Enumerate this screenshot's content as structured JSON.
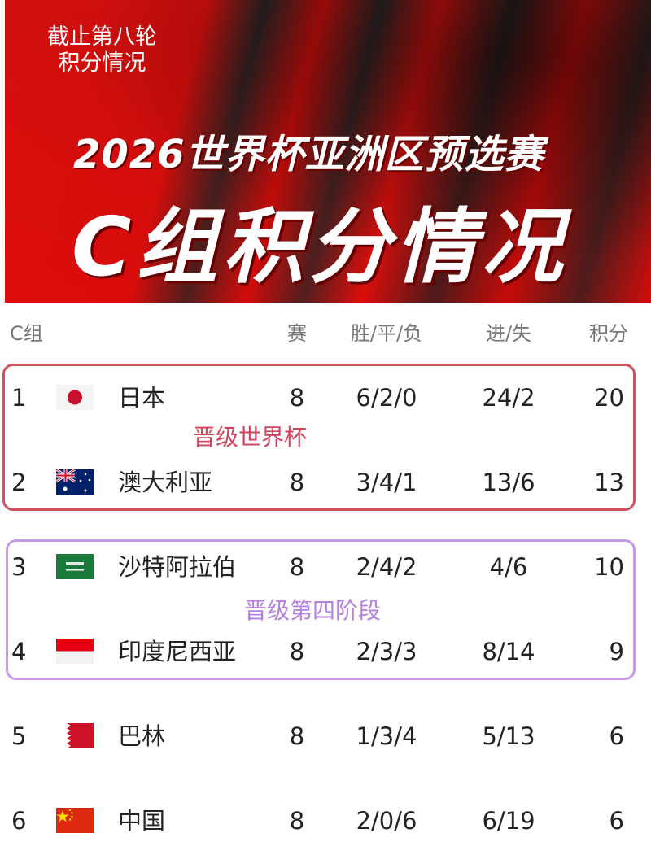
{
  "banner": {
    "subtitle_line1": "截止第八轮",
    "subtitle_line2": "积分情况",
    "title": "2026世界杯亚洲区预选赛",
    "heading": "C组积分情况"
  },
  "table": {
    "headers": {
      "group": "C组",
      "played": "赛",
      "wdl": "胜/平/负",
      "goals": "进/失",
      "points": "积分"
    },
    "zones": [
      {
        "label": "晋级世界杯",
        "color": "#d0445c"
      },
      {
        "label": "晋级第四阶段",
        "color": "#b580e0"
      }
    ],
    "rows": [
      {
        "rank": "1",
        "flag": "japan-flag",
        "team": "日本",
        "played": "8",
        "wdl": "6/2/0",
        "goals": "24/2",
        "points": "20"
      },
      {
        "rank": "2",
        "flag": "australia-flag",
        "team": "澳大利亚",
        "played": "8",
        "wdl": "3/4/1",
        "goals": "13/6",
        "points": "13"
      },
      {
        "rank": "3",
        "flag": "saudi-arabia-flag",
        "team": "沙特阿拉伯",
        "played": "8",
        "wdl": "2/4/2",
        "goals": "4/6",
        "points": "10"
      },
      {
        "rank": "4",
        "flag": "indonesia-flag",
        "team": "印度尼西亚",
        "played": "8",
        "wdl": "2/3/3",
        "goals": "8/14",
        "points": "9"
      },
      {
        "rank": "5",
        "flag": "bahrain-flag",
        "team": "巴林",
        "played": "8",
        "wdl": "1/3/4",
        "goals": "5/13",
        "points": "6"
      },
      {
        "rank": "6",
        "flag": "china-flag",
        "team": "中国",
        "played": "8",
        "wdl": "2/0/6",
        "goals": "6/19",
        "points": "6"
      }
    ]
  }
}
